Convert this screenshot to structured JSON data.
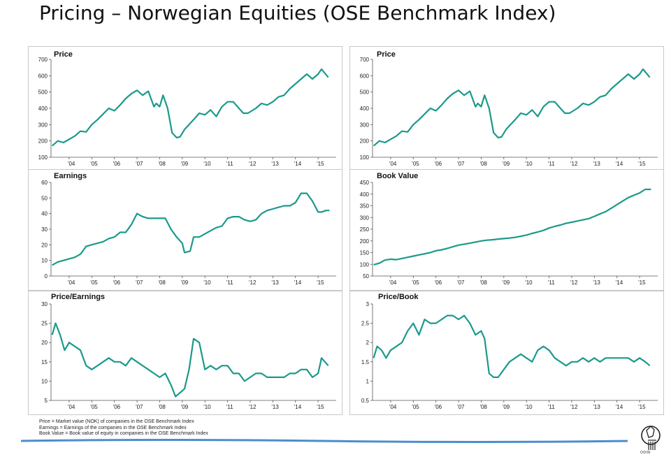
{
  "page": {
    "title": "Pricing – Norwegian Equities (OSE Benchmark Index)",
    "line_color": "#1a9a8a",
    "rule_color": "#4a8fcc"
  },
  "footnotes": [
    "Price = Market value (NOK) of companies in the OSE Benchmark Index",
    "Earnings = Earnings of the companies in the OSE Benchmark Index",
    "Book Value = Book value of equity in companies in the OSE Benchmark Index"
  ],
  "logo": {
    "text": "ODIN",
    "icon": "odin-logo-icon"
  },
  "chart_data": [
    {
      "id": "price-left",
      "type": "line",
      "title": "Price",
      "x_labels": [
        "'04",
        "'05",
        "'06",
        "'07",
        "'08",
        "'09",
        "'10",
        "'11",
        "'12",
        "'13",
        "'14",
        "'15"
      ],
      "xlim": [
        2003.2,
        2015.8
      ],
      "ylim": [
        100,
        700
      ],
      "yticks": [
        "100",
        "200",
        "300",
        "400",
        "500",
        "600",
        "700"
      ],
      "x": [
        2003.25,
        2003.5,
        2003.75,
        2004.0,
        2004.25,
        2004.5,
        2004.75,
        2005.0,
        2005.25,
        2005.5,
        2005.75,
        2006.0,
        2006.25,
        2006.5,
        2006.75,
        2007.0,
        2007.25,
        2007.5,
        2007.75,
        2007.85,
        2008.0,
        2008.15,
        2008.35,
        2008.55,
        2008.75,
        2008.9,
        2009.1,
        2009.3,
        2009.5,
        2009.75,
        2010.0,
        2010.25,
        2010.5,
        2010.75,
        2011.0,
        2011.25,
        2011.5,
        2011.7,
        2011.9,
        2012.25,
        2012.5,
        2012.75,
        2013.0,
        2013.25,
        2013.5,
        2013.75,
        2014.0,
        2014.25,
        2014.5,
        2014.75,
        2015.0,
        2015.15,
        2015.3,
        2015.45
      ],
      "values": [
        170,
        200,
        190,
        210,
        230,
        260,
        255,
        300,
        330,
        365,
        400,
        385,
        420,
        460,
        490,
        510,
        480,
        505,
        410,
        430,
        410,
        480,
        400,
        250,
        220,
        225,
        270,
        300,
        330,
        370,
        360,
        390,
        350,
        410,
        440,
        440,
        400,
        370,
        370,
        400,
        430,
        420,
        440,
        470,
        480,
        520,
        550,
        580,
        610,
        580,
        610,
        640,
        615,
        590
      ]
    },
    {
      "id": "price-right",
      "type": "line",
      "title": "Price",
      "x_labels": [
        "'04",
        "'05",
        "'06",
        "'07",
        "'08",
        "'09",
        "'10",
        "'11",
        "'12",
        "'13",
        "'14",
        "'15"
      ],
      "xlim": [
        2003.2,
        2015.8
      ],
      "ylim": [
        100,
        700
      ],
      "yticks": [
        "100",
        "200",
        "300",
        "400",
        "500",
        "600",
        "700"
      ],
      "x": [
        2003.25,
        2003.5,
        2003.75,
        2004.0,
        2004.25,
        2004.5,
        2004.75,
        2005.0,
        2005.25,
        2005.5,
        2005.75,
        2006.0,
        2006.25,
        2006.5,
        2006.75,
        2007.0,
        2007.25,
        2007.5,
        2007.75,
        2007.85,
        2008.0,
        2008.15,
        2008.35,
        2008.55,
        2008.75,
        2008.9,
        2009.1,
        2009.3,
        2009.5,
        2009.75,
        2010.0,
        2010.25,
        2010.5,
        2010.75,
        2011.0,
        2011.25,
        2011.5,
        2011.7,
        2011.9,
        2012.25,
        2012.5,
        2012.75,
        2013.0,
        2013.25,
        2013.5,
        2013.75,
        2014.0,
        2014.25,
        2014.5,
        2014.75,
        2015.0,
        2015.15,
        2015.3,
        2015.45
      ],
      "values": [
        170,
        200,
        190,
        210,
        230,
        260,
        255,
        300,
        330,
        365,
        400,
        385,
        420,
        460,
        490,
        510,
        480,
        505,
        410,
        430,
        410,
        480,
        400,
        250,
        220,
        225,
        270,
        300,
        330,
        370,
        360,
        390,
        350,
        410,
        440,
        440,
        400,
        370,
        370,
        400,
        430,
        420,
        440,
        470,
        480,
        520,
        550,
        580,
        610,
        580,
        610,
        640,
        615,
        590
      ]
    },
    {
      "id": "earnings",
      "type": "line",
      "title": "Earnings",
      "x_labels": [
        "'04",
        "'05",
        "'06",
        "'07",
        "'08",
        "'09",
        "'10",
        "'11",
        "'12",
        "'13",
        "'14",
        "'15"
      ],
      "xlim": [
        2003.2,
        2015.8
      ],
      "ylim": [
        0,
        60
      ],
      "yticks": [
        "0",
        "10",
        "20",
        "30",
        "40",
        "50",
        "60"
      ],
      "x": [
        2003.25,
        2003.5,
        2003.75,
        2004.0,
        2004.25,
        2004.5,
        2004.75,
        2005.0,
        2005.25,
        2005.5,
        2005.75,
        2006.0,
        2006.25,
        2006.5,
        2006.75,
        2007.0,
        2007.25,
        2007.5,
        2007.75,
        2008.0,
        2008.25,
        2008.5,
        2008.75,
        2009.0,
        2009.1,
        2009.35,
        2009.5,
        2009.75,
        2010.0,
        2010.25,
        2010.5,
        2010.75,
        2011.0,
        2011.25,
        2011.5,
        2011.75,
        2012.0,
        2012.25,
        2012.5,
        2012.75,
        2013.0,
        2013.25,
        2013.5,
        2013.75,
        2014.0,
        2014.25,
        2014.5,
        2014.75,
        2015.0,
        2015.15,
        2015.35,
        2015.5
      ],
      "values": [
        7,
        9,
        10,
        11,
        12,
        14,
        19,
        20,
        21,
        22,
        24,
        25,
        28,
        28,
        33,
        40,
        38,
        37,
        37,
        37,
        37,
        30,
        25,
        21,
        15,
        16,
        25,
        25,
        27,
        29,
        31,
        32,
        37,
        38,
        38,
        36,
        35,
        36,
        40,
        42,
        43,
        44,
        45,
        45,
        47,
        53,
        53,
        48,
        41,
        41,
        42,
        42
      ]
    },
    {
      "id": "book-value",
      "type": "line",
      "title": "Book Value",
      "x_labels": [
        "'04",
        "'05",
        "'06",
        "'07",
        "'08",
        "'09",
        "'10",
        "'11",
        "'12",
        "'13",
        "'14",
        "'15"
      ],
      "xlim": [
        2003.2,
        2015.8
      ],
      "ylim": [
        50,
        450
      ],
      "yticks": [
        "50",
        "100",
        "150",
        "200",
        "250",
        "300",
        "350",
        "400",
        "450"
      ],
      "x": [
        2003.25,
        2003.5,
        2003.75,
        2004.0,
        2004.25,
        2004.5,
        2004.75,
        2005.0,
        2005.25,
        2005.5,
        2005.75,
        2006.0,
        2006.25,
        2006.5,
        2006.75,
        2007.0,
        2007.25,
        2007.5,
        2007.75,
        2008.0,
        2008.25,
        2008.5,
        2008.75,
        2009.0,
        2009.25,
        2009.5,
        2009.75,
        2010.0,
        2010.25,
        2010.5,
        2010.75,
        2011.0,
        2011.25,
        2011.5,
        2011.75,
        2012.0,
        2012.25,
        2012.5,
        2012.75,
        2013.0,
        2013.25,
        2013.5,
        2013.75,
        2014.0,
        2014.25,
        2014.5,
        2014.75,
        2015.0,
        2015.25,
        2015.5
      ],
      "values": [
        98,
        105,
        118,
        122,
        120,
        125,
        130,
        135,
        140,
        145,
        150,
        158,
        162,
        168,
        175,
        182,
        186,
        190,
        195,
        200,
        203,
        205,
        208,
        210,
        212,
        215,
        220,
        225,
        232,
        238,
        245,
        255,
        262,
        268,
        275,
        280,
        285,
        290,
        295,
        305,
        315,
        325,
        340,
        355,
        370,
        385,
        395,
        405,
        420,
        420
      ]
    },
    {
      "id": "price-earnings",
      "type": "line",
      "title": "Price/Earnings",
      "x_labels": [
        "'04",
        "'05",
        "'06",
        "'07",
        "'08",
        "'09",
        "'10",
        "'11",
        "'12",
        "'13",
        "'14",
        "'15"
      ],
      "xlim": [
        2003.2,
        2015.8
      ],
      "ylim": [
        5,
        30
      ],
      "yticks": [
        "5",
        "10",
        "15",
        "20",
        "25",
        "30"
      ],
      "x": [
        2003.25,
        2003.4,
        2003.6,
        2003.8,
        2004.0,
        2004.25,
        2004.5,
        2004.75,
        2005.0,
        2005.25,
        2005.5,
        2005.75,
        2006.0,
        2006.25,
        2006.5,
        2006.75,
        2007.0,
        2007.25,
        2007.5,
        2007.75,
        2008.0,
        2008.25,
        2008.5,
        2008.7,
        2008.9,
        2009.1,
        2009.3,
        2009.5,
        2009.75,
        2010.0,
        2010.25,
        2010.5,
        2010.75,
        2011.0,
        2011.25,
        2011.5,
        2011.75,
        2012.0,
        2012.25,
        2012.5,
        2012.75,
        2013.0,
        2013.25,
        2013.5,
        2013.75,
        2014.0,
        2014.25,
        2014.5,
        2014.75,
        2015.0,
        2015.15,
        2015.3,
        2015.45
      ],
      "values": [
        22,
        25,
        22,
        18,
        20,
        19,
        18,
        14,
        13,
        14,
        15,
        16,
        15,
        15,
        14,
        16,
        15,
        14,
        13,
        12,
        11,
        12,
        9,
        6,
        7,
        8,
        13,
        21,
        20,
        13,
        14,
        13,
        14,
        14,
        12,
        12,
        10,
        11,
        12,
        12,
        11,
        11,
        11,
        11,
        12,
        12,
        13,
        13,
        11,
        12,
        16,
        15,
        14
      ]
    },
    {
      "id": "price-book",
      "type": "line",
      "title": "Price/Book",
      "x_labels": [
        "'04",
        "'05",
        "'06",
        "'07",
        "'08",
        "'09",
        "'10",
        "'11",
        "'12",
        "'13",
        "'14",
        "'15"
      ],
      "xlim": [
        2003.2,
        2015.8
      ],
      "ylim": [
        0.5,
        3
      ],
      "yticks": [
        "0.5",
        "1",
        "1.5",
        "2",
        "2.5",
        "3"
      ],
      "x": [
        2003.25,
        2003.4,
        2003.6,
        2003.8,
        2004.0,
        2004.25,
        2004.5,
        2004.75,
        2005.0,
        2005.25,
        2005.5,
        2005.75,
        2006.0,
        2006.25,
        2006.5,
        2006.75,
        2007.0,
        2007.25,
        2007.5,
        2007.75,
        2008.0,
        2008.15,
        2008.35,
        2008.55,
        2008.75,
        2009.0,
        2009.25,
        2009.5,
        2009.75,
        2010.0,
        2010.25,
        2010.5,
        2010.75,
        2011.0,
        2011.25,
        2011.5,
        2011.75,
        2012.0,
        2012.25,
        2012.5,
        2012.75,
        2013.0,
        2013.25,
        2013.5,
        2013.75,
        2014.0,
        2014.25,
        2014.5,
        2014.75,
        2015.0,
        2015.25,
        2015.45
      ],
      "values": [
        1.6,
        1.9,
        1.8,
        1.6,
        1.8,
        1.9,
        2.0,
        2.3,
        2.5,
        2.2,
        2.6,
        2.5,
        2.5,
        2.6,
        2.7,
        2.7,
        2.6,
        2.7,
        2.5,
        2.2,
        2.3,
        2.1,
        1.2,
        1.1,
        1.1,
        1.3,
        1.5,
        1.6,
        1.7,
        1.6,
        1.5,
        1.8,
        1.9,
        1.8,
        1.6,
        1.5,
        1.4,
        1.5,
        1.5,
        1.6,
        1.5,
        1.6,
        1.5,
        1.6,
        1.6,
        1.6,
        1.6,
        1.6,
        1.5,
        1.6,
        1.5,
        1.4
      ]
    }
  ]
}
